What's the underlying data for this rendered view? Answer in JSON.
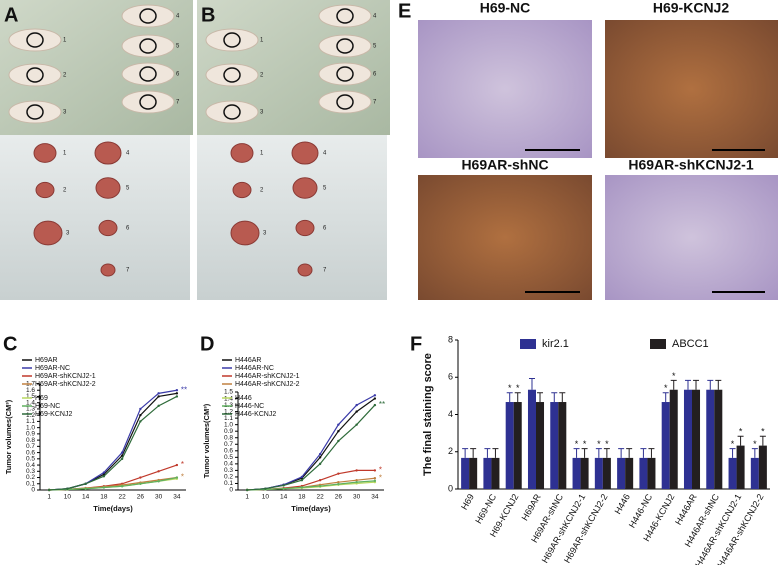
{
  "figure": {
    "panels": [
      "A",
      "B",
      "E"
    ],
    "mouse_numbers": [
      "1",
      "2",
      "3",
      "4",
      "5",
      "6",
      "7"
    ],
    "histology": [
      "H69-NC",
      "H69-KCNJ2",
      "H69AR-shNC",
      "H69AR-shKCNJ2-1"
    ]
  },
  "chart_data": [
    {
      "type": "line",
      "panel_label": "C",
      "y_label": "Tumor volumes(CM³)",
      "x_label": "Time(days)",
      "categories": [
        "1",
        "10",
        "14",
        "18",
        "22",
        "26",
        "30",
        "34"
      ],
      "ylim": [
        0,
        1.7
      ],
      "yticks": [
        0,
        0.1,
        0.2,
        0.3,
        0.4,
        0.5,
        0.6,
        0.7,
        0.8,
        0.9,
        {
          "value": 1,
          "label": "1.0"
        },
        1.1,
        1.2,
        1.3,
        1.4,
        1.5,
        1.6,
        1.7
      ],
      "series": [
        {
          "name": "H69AR",
          "color": "#111111",
          "values": [
            0,
            0.02,
            0.1,
            0.25,
            0.55,
            1.2,
            1.5,
            1.55
          ]
        },
        {
          "name": "H69AR-NC",
          "color": "#3a3aa8",
          "values": [
            0,
            0.02,
            0.1,
            0.28,
            0.6,
            1.3,
            1.55,
            1.6
          ],
          "end_mark": "**"
        },
        {
          "name": "H69AR-shKCNJ2-1",
          "color": "#c0392b",
          "values": [
            0,
            0.01,
            0.03,
            0.06,
            0.1,
            0.2,
            0.3,
            0.4
          ],
          "end_mark": "*"
        },
        {
          "name": "H69AR-shKCNJ2-2",
          "color": "#c08040",
          "values": [
            0,
            0.01,
            0.03,
            0.05,
            0.08,
            0.12,
            0.16,
            0.2
          ],
          "end_mark": "*"
        },
        {
          "name": "H69",
          "color": "#b8d860",
          "values": [
            0,
            0.01,
            0.02,
            0.04,
            0.06,
            0.1,
            0.14,
            0.18
          ]
        },
        {
          "name": "H69-NC",
          "color": "#60b060",
          "values": [
            0,
            0.01,
            0.02,
            0.04,
            0.06,
            0.1,
            0.14,
            0.2
          ]
        },
        {
          "name": "H69-KCNJ2",
          "color": "#2e6b3a",
          "values": [
            0,
            0.02,
            0.1,
            0.22,
            0.5,
            1.1,
            1.35,
            1.5
          ]
        }
      ]
    },
    {
      "type": "line",
      "panel_label": "D",
      "y_label": "Tumor volumes(CM³)",
      "x_label": "Time(days)",
      "categories": [
        "1",
        "10",
        "14",
        "18",
        "22",
        "26",
        "30",
        "34"
      ],
      "ylim": [
        0,
        1.5
      ],
      "yticks": [
        0,
        0.1,
        0.2,
        0.3,
        0.4,
        0.5,
        0.6,
        0.7,
        0.8,
        0.9,
        {
          "value": 1,
          "label": "1.0"
        },
        1.1,
        1.2,
        1.3,
        1.4,
        1.5
      ],
      "series": [
        {
          "name": "H446AR",
          "color": "#111111",
          "values": [
            0,
            0.02,
            0.08,
            0.18,
            0.5,
            0.9,
            1.2,
            1.4
          ]
        },
        {
          "name": "H446AR-NC",
          "color": "#3a3aa8",
          "values": [
            0,
            0.02,
            0.08,
            0.2,
            0.55,
            1.0,
            1.3,
            1.45
          ]
        },
        {
          "name": "H446AR-shKCNJ2-1",
          "color": "#c0392b",
          "values": [
            0,
            0.01,
            0.03,
            0.06,
            0.15,
            0.25,
            0.3,
            0.3
          ],
          "end_mark": "*"
        },
        {
          "name": "H446AR-shKCNJ2-2",
          "color": "#c08040",
          "values": [
            0,
            0.01,
            0.02,
            0.04,
            0.08,
            0.12,
            0.15,
            0.18
          ],
          "end_mark": "*"
        },
        {
          "name": "H446",
          "color": "#b8d860",
          "values": [
            0,
            0.01,
            0.02,
            0.03,
            0.05,
            0.08,
            0.1,
            0.12
          ]
        },
        {
          "name": "H446-NC",
          "color": "#60b060",
          "values": [
            0,
            0.01,
            0.02,
            0.04,
            0.06,
            0.09,
            0.12,
            0.14
          ]
        },
        {
          "name": "H446-KCNJ2",
          "color": "#2e6b3a",
          "values": [
            0,
            0.02,
            0.07,
            0.15,
            0.4,
            0.75,
            1.0,
            1.3
          ],
          "end_mark": "**"
        }
      ]
    },
    {
      "type": "bar",
      "panel_label": "F",
      "y_label": "The final staining score",
      "categories": [
        "H69",
        "H69-NC",
        "H69-KCNJ2",
        "H69AR",
        "H69AR-shNC",
        "H69AR-shKCNJ2-1",
        "H69AR-shKCNJ2-2",
        "H446",
        "H446-NC",
        "H446-KCNJ2",
        "H446AR",
        "H446AR-shNC",
        "H446AR-shKCNJ2-1",
        "H446AR-shKCNJ2-2"
      ],
      "ylim": [
        0,
        8
      ],
      "yticks": [
        0,
        2,
        4,
        6,
        8
      ],
      "series": [
        {
          "name": "kir2.1",
          "color": "#2e3192",
          "values": [
            1.67,
            1.67,
            4.67,
            5.33,
            4.67,
            1.67,
            1.67,
            1.67,
            1.67,
            4.67,
            5.33,
            5.33,
            1.67,
            1.67
          ],
          "errors": [
            0.5,
            0.5,
            0.5,
            0.6,
            0.5,
            0.5,
            0.5,
            0.5,
            0.5,
            0.5,
            0.5,
            0.5,
            0.5,
            0.5
          ],
          "marks": [
            null,
            null,
            "*",
            null,
            null,
            "*",
            "*",
            null,
            null,
            "*",
            null,
            null,
            "*",
            "*"
          ]
        },
        {
          "name": "ABCC1",
          "color": "#231f20",
          "values": [
            1.67,
            1.67,
            4.67,
            4.67,
            4.67,
            1.67,
            1.67,
            1.67,
            1.67,
            5.33,
            5.33,
            5.33,
            2.33,
            2.33
          ],
          "errors": [
            0.5,
            0.5,
            0.5,
            0.5,
            0.5,
            0.5,
            0.5,
            0.5,
            0.5,
            0.5,
            0.5,
            0.5,
            0.5,
            0.5
          ],
          "marks": [
            null,
            null,
            "*",
            null,
            null,
            "*",
            "*",
            null,
            null,
            "*",
            null,
            null,
            "*",
            "*"
          ]
        }
      ]
    }
  ]
}
